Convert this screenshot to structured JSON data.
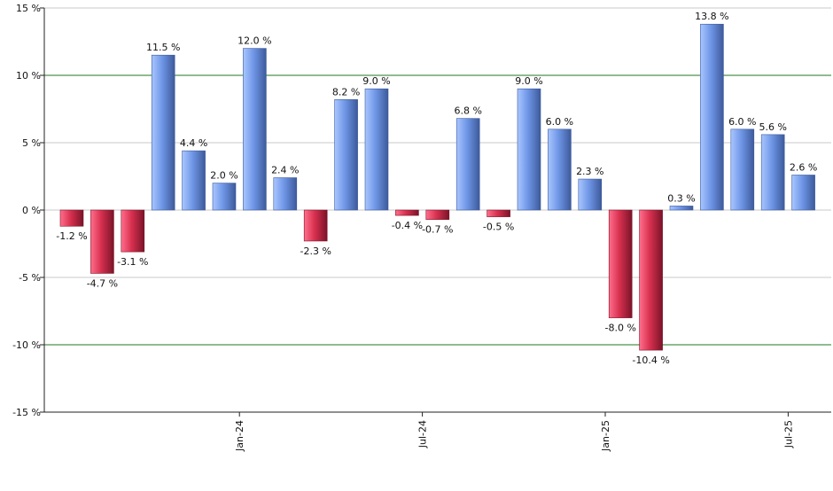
{
  "chart_data": {
    "type": "bar",
    "title": "",
    "xlabel": "",
    "ylabel": "",
    "ylim": [
      -15,
      15
    ],
    "y_ticks": [
      15,
      10,
      5,
      0,
      -5,
      -10,
      -15
    ],
    "y_tick_labels": [
      "15 %",
      "10 %",
      "5 %",
      "0 %",
      "-5 %",
      "-10 %",
      "-15 %"
    ],
    "highlight_gridlines": [
      10,
      -10
    ],
    "x_ticks": [
      {
        "label": "Jan-24",
        "index": 5.5
      },
      {
        "label": "Jul-24",
        "index": 11.5
      },
      {
        "label": "Jan-25",
        "index": 17.5
      },
      {
        "label": "Jul-25",
        "index": 23.5
      }
    ],
    "values": [
      -1.2,
      -4.7,
      -3.1,
      11.5,
      4.4,
      2.0,
      12.0,
      2.4,
      -2.3,
      8.2,
      9.0,
      -0.4,
      -0.7,
      6.8,
      -0.5,
      9.0,
      6.0,
      2.3,
      -8.0,
      -10.4,
      0.3,
      13.8,
      6.0,
      5.6,
      2.6
    ],
    "data_labels": [
      "-1.2 %",
      "-4.7 %",
      "-3.1 %",
      "11.5 %",
      "4.4 %",
      "2.0 %",
      "12.0 %",
      "2.4 %",
      "-2.3 %",
      "8.2 %",
      "9.0 %",
      "-0.4 %",
      "-0.7 %",
      "6.8 %",
      "-0.5 %",
      "9.0 %",
      "6.0 %",
      "2.3 %",
      "-8.0 %",
      "-10.4 %",
      "0.3 %",
      "13.8 %",
      "6.0 %",
      "5.6 %",
      "2.6 %"
    ],
    "colors": {
      "positive_light": "#a9c6ff",
      "positive_mid": "#6f96e6",
      "positive_dark": "#3d5a9b",
      "negative_light": "#ff6f8c",
      "negative_mid": "#d8304f",
      "negative_dark": "#7a1328",
      "grid": "#c8c8c8",
      "grid_highlight": "#1f7a1f",
      "axis": "#222222"
    }
  }
}
